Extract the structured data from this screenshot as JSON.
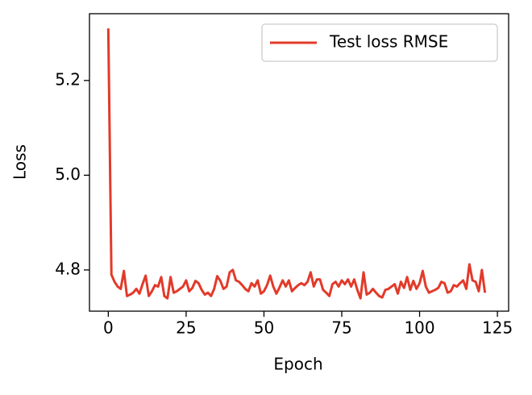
{
  "chart_data": {
    "type": "line",
    "xlabel": "Epoch",
    "ylabel": "Loss",
    "x": [
      0,
      1,
      2,
      3,
      4,
      5,
      6,
      7,
      8,
      9,
      10,
      11,
      12,
      13,
      14,
      15,
      16,
      17,
      18,
      19,
      20,
      21,
      22,
      23,
      24,
      25,
      26,
      27,
      28,
      29,
      30,
      31,
      32,
      33,
      34,
      35,
      36,
      37,
      38,
      39,
      40,
      41,
      42,
      43,
      44,
      45,
      46,
      47,
      48,
      49,
      50,
      51,
      52,
      53,
      54,
      55,
      56,
      57,
      58,
      59,
      60,
      61,
      62,
      63,
      64,
      65,
      66,
      67,
      68,
      69,
      70,
      71,
      72,
      73,
      74,
      75,
      76,
      77,
      78,
      79,
      80,
      81,
      82,
      83,
      84,
      85,
      86,
      87,
      88,
      89,
      90,
      91,
      92,
      93,
      94,
      95,
      96,
      97,
      98,
      99,
      100,
      101,
      102,
      103,
      104,
      105,
      106,
      107,
      108,
      109,
      110,
      111,
      112,
      113,
      114,
      115,
      116,
      117,
      118,
      119,
      120,
      121
    ],
    "series": [
      {
        "name": "Test loss RMSE",
        "color": "#e23a2a",
        "values": [
          5.31,
          4.79,
          4.775,
          4.765,
          4.76,
          4.798,
          4.745,
          4.748,
          4.752,
          4.76,
          4.75,
          4.77,
          4.788,
          4.745,
          4.755,
          4.768,
          4.765,
          4.785,
          4.745,
          4.74,
          4.785,
          4.752,
          4.755,
          4.76,
          4.765,
          4.778,
          4.755,
          4.762,
          4.777,
          4.772,
          4.758,
          4.748,
          4.752,
          4.745,
          4.76,
          4.787,
          4.777,
          4.76,
          4.765,
          4.795,
          4.8,
          4.778,
          4.775,
          4.768,
          4.76,
          4.755,
          4.772,
          4.765,
          4.778,
          4.75,
          4.755,
          4.768,
          4.788,
          4.765,
          4.75,
          4.763,
          4.778,
          4.765,
          4.778,
          4.755,
          4.762,
          4.768,
          4.772,
          4.768,
          4.775,
          4.795,
          4.765,
          4.78,
          4.78,
          4.758,
          4.752,
          4.745,
          4.77,
          4.775,
          4.765,
          4.778,
          4.77,
          4.78,
          4.765,
          4.78,
          4.758,
          4.74,
          4.795,
          4.748,
          4.752,
          4.76,
          4.752,
          4.745,
          4.742,
          4.758,
          4.76,
          4.765,
          4.77,
          4.75,
          4.775,
          4.762,
          4.785,
          4.758,
          4.777,
          4.76,
          4.772,
          4.798,
          4.765,
          4.752,
          4.755,
          4.758,
          4.762,
          4.775,
          4.772,
          4.752,
          4.755,
          4.768,
          4.765,
          4.772,
          4.778,
          4.76,
          4.812,
          4.778,
          4.775,
          4.755,
          4.8,
          4.752
        ]
      }
    ],
    "xlim": [
      -6.05,
      128.6
    ],
    "xticks": [
      0,
      25,
      50,
      75,
      100,
      125
    ],
    "ylim": [
      4.713,
      5.341
    ],
    "yticks": [
      4.8,
      {
        "value": 5,
        "label": "5.0"
      },
      5.2
    ],
    "legend": "upper right"
  }
}
